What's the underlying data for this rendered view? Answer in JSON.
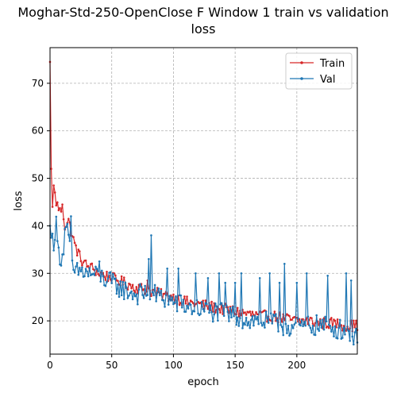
{
  "chart_data": {
    "type": "line",
    "title_lines": [
      "Moghar-Std-250-OpenClose F Window 1 train vs validation",
      "loss"
    ],
    "xlabel": "epoch",
    "ylabel": "loss",
    "xlim": [
      0,
      249
    ],
    "ylim": [
      13,
      77.5
    ],
    "x_ticks": [
      0,
      50,
      100,
      150,
      200
    ],
    "y_ticks": [
      20,
      30,
      40,
      50,
      60,
      70
    ],
    "grid": true,
    "legend_position": "upper right",
    "series": [
      {
        "name": "Train",
        "color": "#d62728",
        "anchors": [
          [
            0,
            74.5
          ],
          [
            1,
            52
          ],
          [
            2,
            44
          ],
          [
            3,
            48
          ],
          [
            5,
            45
          ],
          [
            8,
            43
          ],
          [
            10,
            44
          ],
          [
            12,
            40
          ],
          [
            15,
            41
          ],
          [
            18,
            38
          ],
          [
            20,
            36
          ],
          [
            25,
            33
          ],
          [
            30,
            31.5
          ],
          [
            35,
            31
          ],
          [
            40,
            30
          ],
          [
            45,
            29.5
          ],
          [
            50,
            29
          ],
          [
            60,
            28
          ],
          [
            70,
            27
          ],
          [
            80,
            26.5
          ],
          [
            90,
            25.5
          ],
          [
            100,
            25
          ],
          [
            110,
            24
          ],
          [
            120,
            23.5
          ],
          [
            130,
            23
          ],
          [
            140,
            22.5
          ],
          [
            150,
            22
          ],
          [
            160,
            21.5
          ],
          [
            170,
            21
          ],
          [
            180,
            21
          ],
          [
            190,
            20.5
          ],
          [
            200,
            20
          ],
          [
            210,
            20
          ],
          [
            220,
            19.5
          ],
          [
            230,
            19.5
          ],
          [
            240,
            19
          ],
          [
            249,
            19
          ]
        ],
        "noise": 1.2,
        "spikes": [
          [
            3,
            48.5
          ],
          [
            10,
            44.5
          ],
          [
            79,
            28.5
          ]
        ]
      },
      {
        "name": "Val",
        "color": "#1f77b4",
        "anchors": [
          [
            0,
            40
          ],
          [
            1,
            37.5
          ],
          [
            3,
            37
          ],
          [
            5,
            40
          ],
          [
            7,
            34
          ],
          [
            10,
            33.5
          ],
          [
            13,
            41
          ],
          [
            15,
            37
          ],
          [
            18,
            31
          ],
          [
            20,
            30
          ],
          [
            25,
            30.5
          ],
          [
            30,
            30
          ],
          [
            40,
            29.5
          ],
          [
            50,
            28
          ],
          [
            60,
            26.5
          ],
          [
            70,
            25.5
          ],
          [
            80,
            26
          ],
          [
            90,
            25
          ],
          [
            100,
            24
          ],
          [
            110,
            23
          ],
          [
            120,
            22.5
          ],
          [
            130,
            22
          ],
          [
            140,
            21.5
          ],
          [
            150,
            21
          ],
          [
            160,
            20
          ],
          [
            170,
            20
          ],
          [
            180,
            19.5
          ],
          [
            190,
            19
          ],
          [
            200,
            18.5
          ],
          [
            210,
            19
          ],
          [
            220,
            19
          ],
          [
            230,
            18.5
          ],
          [
            240,
            18
          ],
          [
            249,
            16
          ]
        ],
        "noise": 2.2,
        "spikes": [
          [
            82,
            38
          ],
          [
            80,
            33
          ],
          [
            95,
            31
          ],
          [
            104,
            31
          ],
          [
            118,
            30
          ],
          [
            128,
            29
          ],
          [
            137,
            30
          ],
          [
            142,
            28
          ],
          [
            150,
            28
          ],
          [
            155,
            30
          ],
          [
            170,
            29
          ],
          [
            178,
            30
          ],
          [
            186,
            28
          ],
          [
            190,
            32
          ],
          [
            200,
            28
          ],
          [
            208,
            30
          ],
          [
            225,
            29.5
          ],
          [
            240,
            30
          ],
          [
            244,
            28.5
          ],
          [
            17,
            42
          ],
          [
            40,
            32.5
          ]
        ]
      }
    ]
  }
}
